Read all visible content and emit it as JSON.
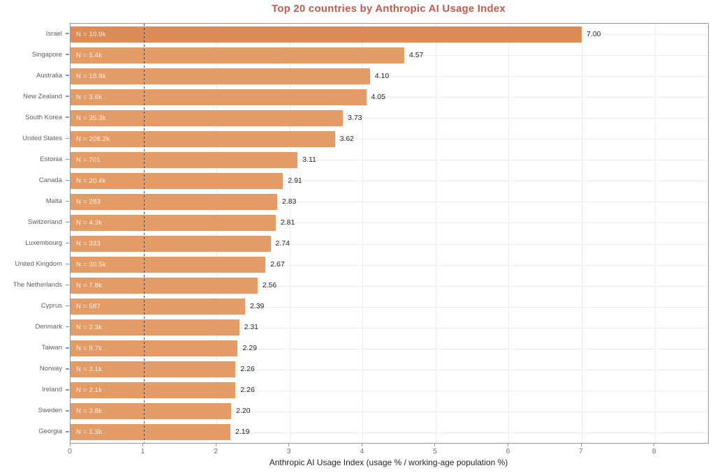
{
  "chart_data": {
    "type": "bar",
    "orientation": "horizontal",
    "title": "Top 20 countries by Anthropic AI Usage Index",
    "xlabel": "Anthropic AI Usage Index (usage % / working-age population %)",
    "xlim": [
      0,
      8.73
    ],
    "xticks": [
      0,
      1,
      2,
      3,
      4,
      5,
      6,
      7,
      8
    ],
    "reference_line_x": 1,
    "grid": true,
    "legend": "none",
    "rows": [
      {
        "country": "Israel",
        "n_label": "N = 10.9k",
        "value": 7.0,
        "value_label": "7.00"
      },
      {
        "country": "Singapore",
        "n_label": "N = 5.4k",
        "value": 4.57,
        "value_label": "4.57"
      },
      {
        "country": "Australia",
        "n_label": "N = 18.8k",
        "value": 4.1,
        "value_label": "4.10"
      },
      {
        "country": "New Zealand",
        "n_label": "N = 3.6k",
        "value": 4.05,
        "value_label": "4.05"
      },
      {
        "country": "South Korea",
        "n_label": "N = 35.3k",
        "value": 3.73,
        "value_label": "3.73"
      },
      {
        "country": "United States",
        "n_label": "N = 208.2k",
        "value": 3.62,
        "value_label": "3.62"
      },
      {
        "country": "Estonia",
        "n_label": "N = 701",
        "value": 3.11,
        "value_label": "3.11"
      },
      {
        "country": "Canada",
        "n_label": "N = 20.4k",
        "value": 2.91,
        "value_label": "2.91"
      },
      {
        "country": "Malta",
        "n_label": "N = 283",
        "value": 2.83,
        "value_label": "2.83"
      },
      {
        "country": "Switzerland",
        "n_label": "N = 4.3k",
        "value": 2.81,
        "value_label": "2.81"
      },
      {
        "country": "Luxembourg",
        "n_label": "N = 333",
        "value": 2.74,
        "value_label": "2.74"
      },
      {
        "country": "United Kingdom",
        "n_label": "N = 30.5k",
        "value": 2.67,
        "value_label": "2.67"
      },
      {
        "country": "The Netherlands",
        "n_label": "N = 7.8k",
        "value": 2.56,
        "value_label": "2.56"
      },
      {
        "country": "Cyprus",
        "n_label": "N = 587",
        "value": 2.39,
        "value_label": "2.39"
      },
      {
        "country": "Denmark",
        "n_label": "N = 2.3k",
        "value": 2.31,
        "value_label": "2.31"
      },
      {
        "country": "Taiwan",
        "n_label": "N = 9.7k",
        "value": 2.29,
        "value_label": "2.29"
      },
      {
        "country": "Norway",
        "n_label": "N = 2.1k",
        "value": 2.26,
        "value_label": "2.26"
      },
      {
        "country": "Ireland",
        "n_label": "N = 2.1k",
        "value": 2.26,
        "value_label": "2.26"
      },
      {
        "country": "Sweden",
        "n_label": "N = 3.8k",
        "value": 2.2,
        "value_label": "2.20"
      },
      {
        "country": "Georgia",
        "n_label": "N = 1.3k",
        "value": 2.19,
        "value_label": "2.19"
      }
    ],
    "colors": {
      "bar": "#E49C66",
      "bar_highlight": "#DE8C55",
      "title": "#C05C4D",
      "value_label": "#23272E",
      "country_label": "#5C6168",
      "tick_label": "#6E7378",
      "axis_label": "#23272E",
      "bar_n_label": "rgba(255,255,255,0.82)",
      "gridline": "#ECECEC",
      "reference_line": "#444444",
      "plot_border": "#8F969C",
      "background": "#FFFFFF"
    }
  }
}
